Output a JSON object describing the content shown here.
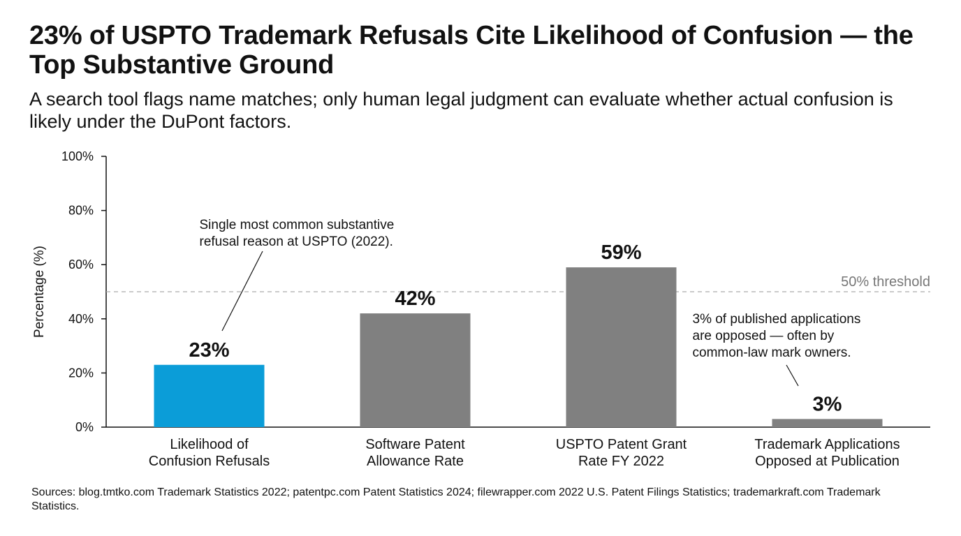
{
  "chart_data": {
    "type": "bar",
    "title": "23% of USPTO Trademark Refusals Cite Likelihood of Confusion — the Top Substantive Ground",
    "subtitle": "A search tool flags name matches; only human legal judgment can evaluate whether actual confusion is likely under the DuPont factors.",
    "ylabel": "Percentage (%)",
    "ylim": [
      0,
      100
    ],
    "yticks": [
      {
        "value": 0,
        "label": "0%"
      },
      {
        "value": 20,
        "label": "20%"
      },
      {
        "value": 40,
        "label": "40%"
      },
      {
        "value": 60,
        "label": "60%"
      },
      {
        "value": 80,
        "label": "80%"
      },
      {
        "value": 100,
        "label": "100%"
      }
    ],
    "categories": [
      [
        "Likelihood of",
        "Confusion Refusals"
      ],
      [
        "Software Patent",
        "Allowance Rate"
      ],
      [
        "USPTO Patent Grant",
        "Rate FY 2022"
      ],
      [
        "Trademark Applications",
        "Opposed at Publication"
      ]
    ],
    "values": [
      23,
      42,
      59,
      3
    ],
    "value_labels": [
      "23%",
      "42%",
      "59%",
      "3%"
    ],
    "bar_colors": [
      "#0b9dd8",
      "#808080",
      "#808080",
      "#808080"
    ],
    "threshold": {
      "value": 50,
      "label": "50% threshold",
      "color": "#aaaaaa"
    },
    "annotations": [
      {
        "bar": 0,
        "lines": [
          "Single most common substantive",
          "refusal reason at USPTO (2022)."
        ]
      },
      {
        "bar": 3,
        "lines": [
          "3% of published applications",
          "are opposed — often by",
          "common-law mark owners."
        ]
      }
    ],
    "grid": false,
    "legend": "none"
  },
  "sources": "Sources: blog.tmtko.com Trademark Statistics 2022; patentpc.com Patent Statistics 2024; filewrapper.com 2022 U.S. Patent Filings Statistics; trademarkraft.com Trademark Statistics."
}
